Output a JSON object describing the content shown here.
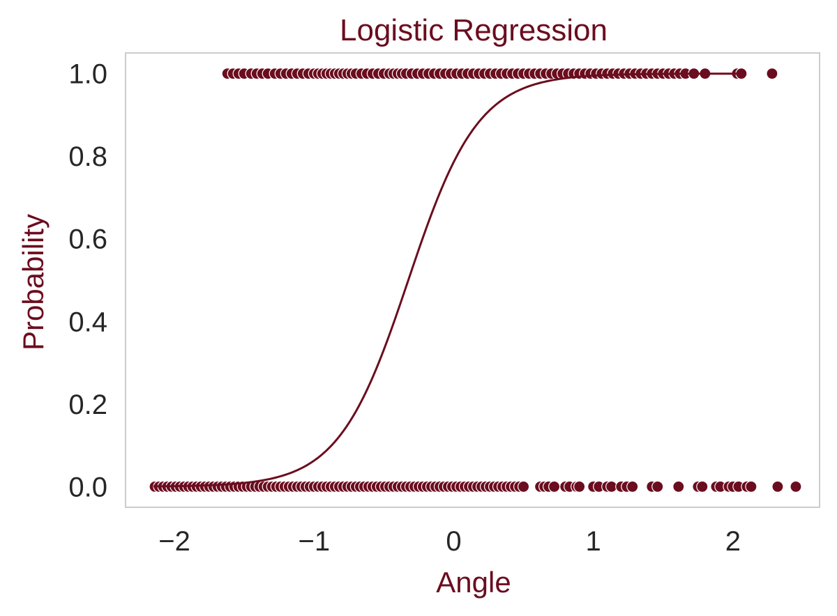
{
  "chart_data": {
    "type": "scatter",
    "title": "Logistic Regression",
    "xlabel": "Angle",
    "ylabel": "Probability",
    "xlim": [
      -2.35,
      2.62
    ],
    "ylim": [
      -0.05,
      1.05
    ],
    "xticks": [
      -2,
      -1,
      0,
      1,
      2
    ],
    "xtick_labels": [
      "−2",
      "−1",
      "0",
      "1",
      "2"
    ],
    "yticks": [
      0.0,
      0.2,
      0.4,
      0.6,
      0.8,
      1.0
    ],
    "ytick_labels": [
      "0.0",
      "0.2",
      "0.4",
      "0.6",
      "0.8",
      "1.0"
    ],
    "grid": false,
    "colors": {
      "accent": "#6b0d1f",
      "text": "#262626",
      "frame": "#cccccc"
    },
    "points": {
      "y1_x": [
        -1.62,
        -1.58,
        -1.54,
        -1.5,
        -1.45,
        -1.41,
        -1.37,
        -1.33,
        -1.28,
        -1.24,
        -1.2,
        -1.16,
        -1.12,
        -1.08,
        -1.04,
        -1.0,
        -0.97,
        -0.94,
        -0.91,
        -0.88,
        -0.85,
        -0.82,
        -0.79,
        -0.76,
        -0.73,
        -0.7,
        -0.66,
        -0.62,
        -0.58,
        -0.54,
        -0.5,
        -0.46,
        -0.43,
        -0.4,
        -0.37,
        -0.34,
        -0.3,
        -0.26,
        -0.22,
        -0.18,
        -0.14,
        -0.1,
        -0.06,
        -0.02,
        0.02,
        0.06,
        0.1,
        0.14,
        0.18,
        0.22,
        0.26,
        0.3,
        0.34,
        0.38,
        0.42,
        0.46,
        0.5,
        0.54,
        0.58,
        0.62,
        0.66,
        0.7,
        0.74,
        0.78,
        0.82,
        0.86,
        0.9,
        0.94,
        0.98,
        1.02,
        1.06,
        1.1,
        1.14,
        1.18,
        1.22,
        1.26,
        1.3,
        1.34,
        1.38,
        1.42,
        1.46,
        1.5,
        1.54,
        1.58,
        1.62,
        1.66,
        1.72,
        1.8,
        2.03,
        2.06,
        2.28
      ],
      "y0_x": [
        -2.14,
        -2.11,
        -2.08,
        -2.05,
        -2.02,
        -1.99,
        -1.96,
        -1.93,
        -1.9,
        -1.87,
        -1.84,
        -1.81,
        -1.78,
        -1.75,
        -1.72,
        -1.69,
        -1.66,
        -1.63,
        -1.6,
        -1.57,
        -1.54,
        -1.51,
        -1.48,
        -1.45,
        -1.42,
        -1.39,
        -1.36,
        -1.33,
        -1.3,
        -1.27,
        -1.24,
        -1.21,
        -1.18,
        -1.15,
        -1.12,
        -1.09,
        -1.06,
        -1.03,
        -1.0,
        -0.97,
        -0.94,
        -0.91,
        -0.88,
        -0.85,
        -0.82,
        -0.79,
        -0.76,
        -0.73,
        -0.7,
        -0.67,
        -0.64,
        -0.61,
        -0.58,
        -0.55,
        -0.52,
        -0.49,
        -0.46,
        -0.43,
        -0.4,
        -0.37,
        -0.34,
        -0.31,
        -0.28,
        -0.25,
        -0.22,
        -0.19,
        -0.16,
        -0.13,
        -0.1,
        -0.07,
        -0.04,
        -0.01,
        0.02,
        0.05,
        0.08,
        0.11,
        0.14,
        0.17,
        0.2,
        0.23,
        0.26,
        0.29,
        0.32,
        0.35,
        0.38,
        0.41,
        0.44,
        0.47,
        0.5,
        0.62,
        0.65,
        0.68,
        0.72,
        0.8,
        0.83,
        0.88,
        0.9,
        1.0,
        1.04,
        1.1,
        1.13,
        1.2,
        1.24,
        1.28,
        1.42,
        1.46,
        1.61,
        1.75,
        1.78,
        1.88,
        1.91,
        1.97,
        2.0,
        2.04,
        2.1,
        2.13,
        2.32,
        2.45
      ]
    },
    "series": [
      {
        "name": "",
        "type": "sigmoid",
        "intercept": 1.3,
        "slope": 4.0,
        "x_start": -2.15,
        "x_end": 2.05
      }
    ]
  }
}
